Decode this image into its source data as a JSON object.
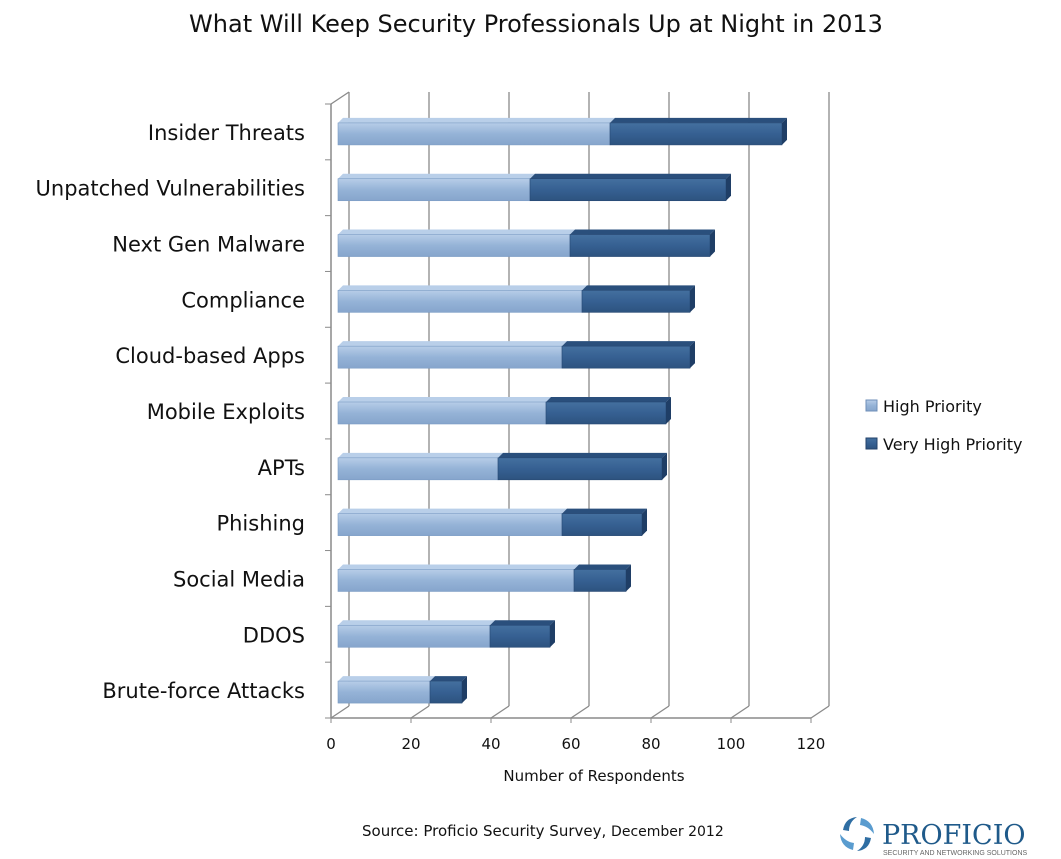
{
  "chart_data": {
    "type": "bar",
    "orientation": "horizontal",
    "stacked": true,
    "title": "What Will Keep Security Professionals Up at Night in 2013",
    "xlabel": "Number of Respondents",
    "ylabel": "",
    "xlim": [
      0,
      120
    ],
    "xticks": [
      "0",
      "20",
      "40",
      "60",
      "80",
      "100",
      "120"
    ],
    "grid": true,
    "legend_position": "right",
    "categories": [
      "Insider Threats",
      "Unpatched Vulnerabilities",
      "Next Gen Malware",
      "Compliance",
      "Cloud-based Apps",
      "Mobile Exploits",
      "APTs",
      "Phishing",
      "Social Media",
      "DDOS",
      "Brute-force Attacks"
    ],
    "series": [
      {
        "name": "High Priority",
        "color": "#95B3D7",
        "values": [
          68,
          48,
          58,
          61,
          56,
          52,
          40,
          56,
          59,
          38,
          23
        ]
      },
      {
        "name": "Very High Priority",
        "color": "#366092",
        "values": [
          43,
          49,
          35,
          27,
          32,
          30,
          41,
          20,
          13,
          15,
          8
        ]
      }
    ],
    "source": "Source: Proficio Security Survey,",
    "source_date": "December 2012"
  },
  "logo": {
    "name": "PROFICIO",
    "tagline": "SECURITY AND NETWORKING SOLUTIONS"
  }
}
